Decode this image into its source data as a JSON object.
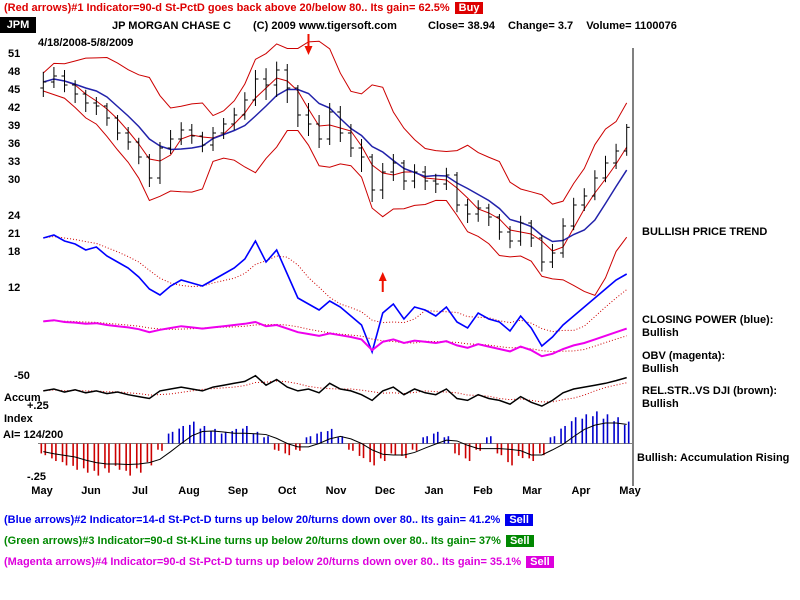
{
  "header": {
    "signal_line": "(Red arrows)#1 Indicator=90-d St-PctD goes back above 20/below 80..  Its gain= 62.5%",
    "signal_badge": "Buy",
    "signal_color": "#dd0000",
    "ticker": "JPM",
    "company": "JP MORGAN CHASE C",
    "copyright": "(C) 2009 www.tigersoft.com",
    "close_label": "Close=",
    "close_value": "38.94",
    "change_label": "Change=",
    "change_value": "3.7",
    "volume_label": "Volume=",
    "volume_value": "1100076",
    "date_range": "4/18/2008-5/8/2009"
  },
  "left_labels": {
    "rs_scale": "-50",
    "accum": "Accum",
    "ai_top": "+.25",
    "index": "Index",
    "ai_value": "AI= 124/200",
    "ai_bottom": "-.25"
  },
  "right_panel": {
    "price_trend": "BULLISH PRICE TREND",
    "cp_label": "CLOSING POWER (blue):",
    "cp_status": "Bullish",
    "obv_label": "OBV (magenta):",
    "obv_status": "Bullish",
    "rs_label": "REL.STR..VS DJI (brown):",
    "rs_status": "Bullish",
    "ai_status": "Bullish: Accumulation Rising"
  },
  "footer_signals": [
    {
      "text": "(Blue arrows)#2 Indicator=14-d St-Pct-D turns up below 20/turns down over 80..  Its gain= 41.2%",
      "badge": "Sell",
      "color": "#0000ee"
    },
    {
      "text": "(Green arrows)#3 Indicator=90-d St-KLine turns up below 20/turns down over 80..  Its gain= 37%",
      "badge": "Sell",
      "color": "#008800"
    },
    {
      "text": "(Magenta arrows)#4 Indicator=90-d St-Pct-D turns up below 20/turns down over 80..  Its gain= 35.1%",
      "badge": "Sell",
      "color": "#dd00dd"
    }
  ],
  "chart_data": {
    "type": "line",
    "title": "JPM JP MORGAN CHASE C 4/18/2008-5/8/2009",
    "x_axis": {
      "labels": [
        "May",
        "Jun",
        "Jul",
        "Aug",
        "Sep",
        "Oct",
        "Nov",
        "Dec",
        "Jan",
        "Feb",
        "Mar",
        "Apr",
        "May"
      ]
    },
    "price_axis": {
      "labels": [
        51,
        48,
        45,
        42,
        39,
        36,
        33,
        30,
        24,
        21,
        18,
        12
      ],
      "min": 12,
      "max": 51
    },
    "price": {
      "open": [
        45.5,
        46.5,
        47.5,
        46.0,
        44.5,
        43.0,
        42.5,
        40.5,
        38.0,
        36.5,
        34.0,
        30.5,
        35.5,
        37.0,
        38.5,
        37.5,
        36.0,
        38.0,
        39.5,
        41.0,
        43.5,
        47.0,
        46.0,
        48.5,
        45.5,
        41.0,
        39.5,
        37.0,
        41.5,
        38.0,
        35.5,
        34.0,
        28.5,
        31.5,
        33.0,
        30.0,
        31.5,
        30.0,
        29.5,
        31.0,
        26.0,
        24.5,
        25.5,
        24.0,
        21.5,
        20.0,
        23.0,
        20.5,
        16.5,
        18.0,
        22.5,
        26.0,
        27.5,
        30.5,
        33.0,
        35.0
      ],
      "high": [
        48.2,
        49.0,
        48.5,
        46.8,
        45.2,
        44.0,
        43.0,
        41.0,
        39.0,
        37.2,
        34.5,
        36.5,
        38.5,
        39.8,
        39.5,
        38.2,
        39.0,
        40.5,
        42.2,
        44.8,
        48.5,
        48.8,
        49.9,
        49.5,
        46.0,
        43.0,
        41.0,
        43.0,
        42.5,
        39.5,
        37.0,
        34.5,
        33.0,
        34.5,
        33.5,
        32.8,
        32.5,
        31.2,
        32.2,
        31.5,
        27.0,
        26.8,
        26.2,
        24.5,
        22.5,
        24.2,
        23.5,
        21.0,
        19.5,
        23.8,
        27.2,
        28.8,
        31.8,
        34.2,
        36.2,
        39.5
      ],
      "low": [
        44.0,
        45.5,
        44.8,
        43.0,
        41.5,
        41.0,
        39.2,
        36.8,
        35.2,
        32.8,
        29.0,
        29.5,
        34.5,
        36.0,
        36.2,
        34.8,
        35.0,
        37.0,
        38.5,
        40.2,
        42.5,
        43.5,
        44.0,
        43.0,
        39.0,
        37.5,
        35.5,
        36.0,
        36.5,
        34.0,
        31.5,
        26.5,
        27.0,
        30.0,
        28.5,
        28.8,
        28.5,
        28.0,
        28.5,
        24.8,
        23.0,
        23.2,
        22.5,
        20.2,
        18.8,
        19.2,
        19.0,
        14.9,
        15.5,
        17.2,
        21.8,
        25.0,
        26.8,
        29.8,
        32.0,
        34.2
      ],
      "close": [
        46.5,
        47.5,
        46.0,
        44.5,
        43.0,
        42.5,
        40.5,
        38.0,
        36.5,
        34.0,
        30.5,
        35.5,
        37.0,
        38.5,
        37.5,
        36.0,
        38.0,
        39.5,
        41.0,
        43.5,
        47.0,
        46.0,
        48.5,
        45.5,
        41.0,
        39.5,
        37.0,
        41.5,
        38.0,
        35.5,
        34.0,
        28.5,
        31.5,
        33.0,
        30.0,
        31.5,
        30.0,
        29.5,
        31.0,
        26.0,
        24.5,
        25.5,
        24.0,
        21.5,
        20.0,
        23.0,
        20.5,
        16.5,
        18.0,
        22.5,
        26.0,
        27.5,
        30.5,
        33.0,
        35.0,
        38.94
      ]
    },
    "closing_power": [
      20.5,
      21.0,
      20.0,
      19.5,
      18.5,
      19.0,
      17.5,
      16.5,
      15.5,
      14.0,
      12.0,
      11.0,
      12.5,
      13.5,
      13.0,
      12.5,
      13.5,
      14.5,
      15.5,
      17.0,
      20.0,
      16.5,
      18.5,
      14.5,
      10.5,
      9.5,
      8.5,
      10.0,
      9.0,
      7.5,
      6.0,
      1.5,
      8.0,
      9.5,
      7.0,
      9.0,
      8.5,
      7.5,
      9.0,
      6.5,
      5.5,
      8.0,
      7.0,
      6.5,
      5.0,
      7.5,
      5.5,
      2.5,
      4.0,
      6.0,
      7.5,
      9.0,
      10.5,
      12.0,
      13.5,
      14.5
    ],
    "obv": [
      6.6,
      6.8,
      6.5,
      6.4,
      6.2,
      6.3,
      6.0,
      5.8,
      5.6,
      5.3,
      4.8,
      5.2,
      5.5,
      5.8,
      5.6,
      5.4,
      5.6,
      5.8,
      6.0,
      6.2,
      6.5,
      5.8,
      6.0,
      5.4,
      4.8,
      4.5,
      4.2,
      4.6,
      4.3,
      4.0,
      3.6,
      1.8,
      3.2,
      3.6,
      3.0,
      3.4,
      3.2,
      3.0,
      3.3,
      2.6,
      2.2,
      2.8,
      2.4,
      2.0,
      1.6,
      2.4,
      1.8,
      0.8,
      1.2,
      2.0,
      2.6,
      3.0,
      3.6,
      4.2,
      4.8,
      5.4
    ],
    "rel_str": [
      0.45,
      0.5,
      0.42,
      0.48,
      0.4,
      0.45,
      0.38,
      0.42,
      0.35,
      0.3,
      0.25,
      0.45,
      0.5,
      0.55,
      0.5,
      0.45,
      0.55,
      0.6,
      0.65,
      0.7,
      0.85,
      0.6,
      0.75,
      0.55,
      0.45,
      0.5,
      0.4,
      0.65,
      0.5,
      0.45,
      0.35,
      0.2,
      0.45,
      0.55,
      0.35,
      0.5,
      0.4,
      0.35,
      0.5,
      0.25,
      0.2,
      0.35,
      0.25,
      0.2,
      0.1,
      0.3,
      0.15,
      0.05,
      0.2,
      0.4,
      0.5,
      0.55,
      0.6,
      0.65,
      0.72,
      0.8
    ],
    "accum_index": [
      -0.08,
      -0.12,
      -0.15,
      -0.18,
      -0.2,
      -0.22,
      -0.2,
      -0.18,
      -0.22,
      -0.2,
      -0.15,
      -0.05,
      0.08,
      0.12,
      0.15,
      0.12,
      0.1,
      0.08,
      0.1,
      0.12,
      0.08,
      0.05,
      -0.05,
      -0.08,
      -0.05,
      0.05,
      0.08,
      0.1,
      0.05,
      -0.05,
      -0.1,
      -0.15,
      -0.12,
      -0.08,
      -0.1,
      -0.05,
      0.05,
      0.08,
      0.05,
      -0.08,
      -0.12,
      -0.05,
      0.05,
      -0.08,
      -0.15,
      -0.1,
      -0.12,
      -0.08,
      0.05,
      0.12,
      0.18,
      0.2,
      0.22,
      0.2,
      0.18,
      0.15
    ],
    "ai_scale": {
      "top": 0.25,
      "bottom": -0.25
    },
    "arrows": {
      "sell_index": 25,
      "buy_index": 32
    },
    "colors": {
      "price": "#000000",
      "bands": "#cc0000",
      "ma": "#2222aa",
      "closing_power": "#0000ff",
      "obv": "#ee00ee",
      "rel_str": "#000000",
      "ai_pos": "#0000cc",
      "ai_neg": "#cc0000",
      "arrow": "#ee1100"
    }
  }
}
